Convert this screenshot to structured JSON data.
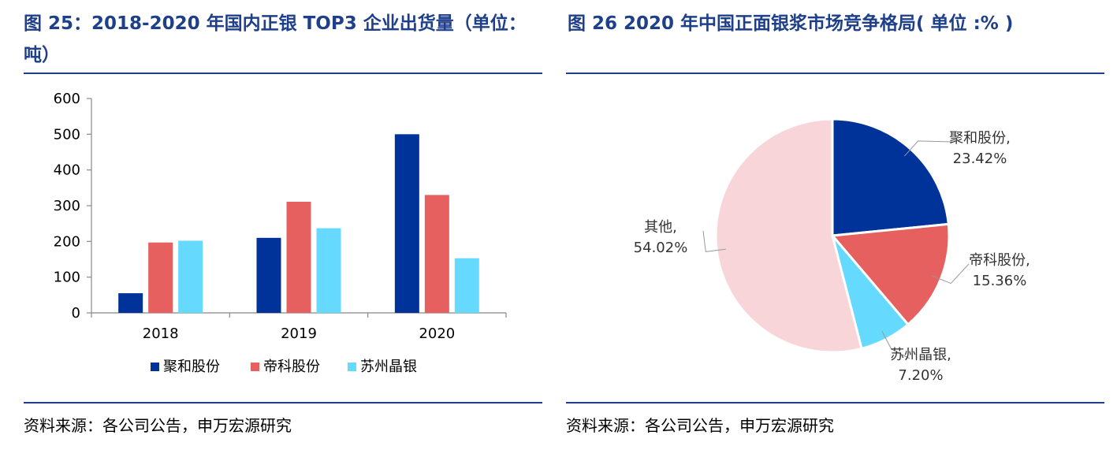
{
  "left": {
    "title": "图 25：2018-2020 年国内正银 TOP3 企业出货量（单位：吨）",
    "source": "资料来源：各公司公告，申万宏源研究"
  },
  "right": {
    "title": "图 26 2020 年中国正面银浆市场竞争格局( 单位 :% )",
    "source": "资料来源：各公司公告，申万宏源研究"
  },
  "chart_data": [
    {
      "type": "bar",
      "title": "",
      "xlabel": "",
      "ylabel": "",
      "categories": [
        "2018",
        "2019",
        "2020"
      ],
      "ylim": [
        0,
        600
      ],
      "yticks": [
        0,
        100,
        200,
        300,
        400,
        500,
        600
      ],
      "grid": false,
      "legend_position": "bottom",
      "series": [
        {
          "name": "聚和股份",
          "values": [
            55,
            210,
            500
          ],
          "color": "#003399"
        },
        {
          "name": "帝科股份",
          "values": [
            197,
            311,
            330
          ],
          "color": "#e66060"
        },
        {
          "name": "苏州晶银",
          "values": [
            202,
            237,
            153
          ],
          "color": "#66d9ff"
        }
      ]
    },
    {
      "type": "pie",
      "title": "",
      "slices": [
        {
          "label": "聚和股份,",
          "value": 23.42,
          "value_text": "23.42%",
          "color": "#003399"
        },
        {
          "label": "帝科股份,",
          "value": 15.36,
          "value_text": "15.36%",
          "color": "#e66060"
        },
        {
          "label": "苏州晶银,",
          "value": 7.2,
          "value_text": "7.20%",
          "color": "#66d9ff"
        },
        {
          "label": "其他,",
          "value": 54.02,
          "value_text": "54.02%",
          "color": "#f8d5d8"
        }
      ]
    }
  ]
}
